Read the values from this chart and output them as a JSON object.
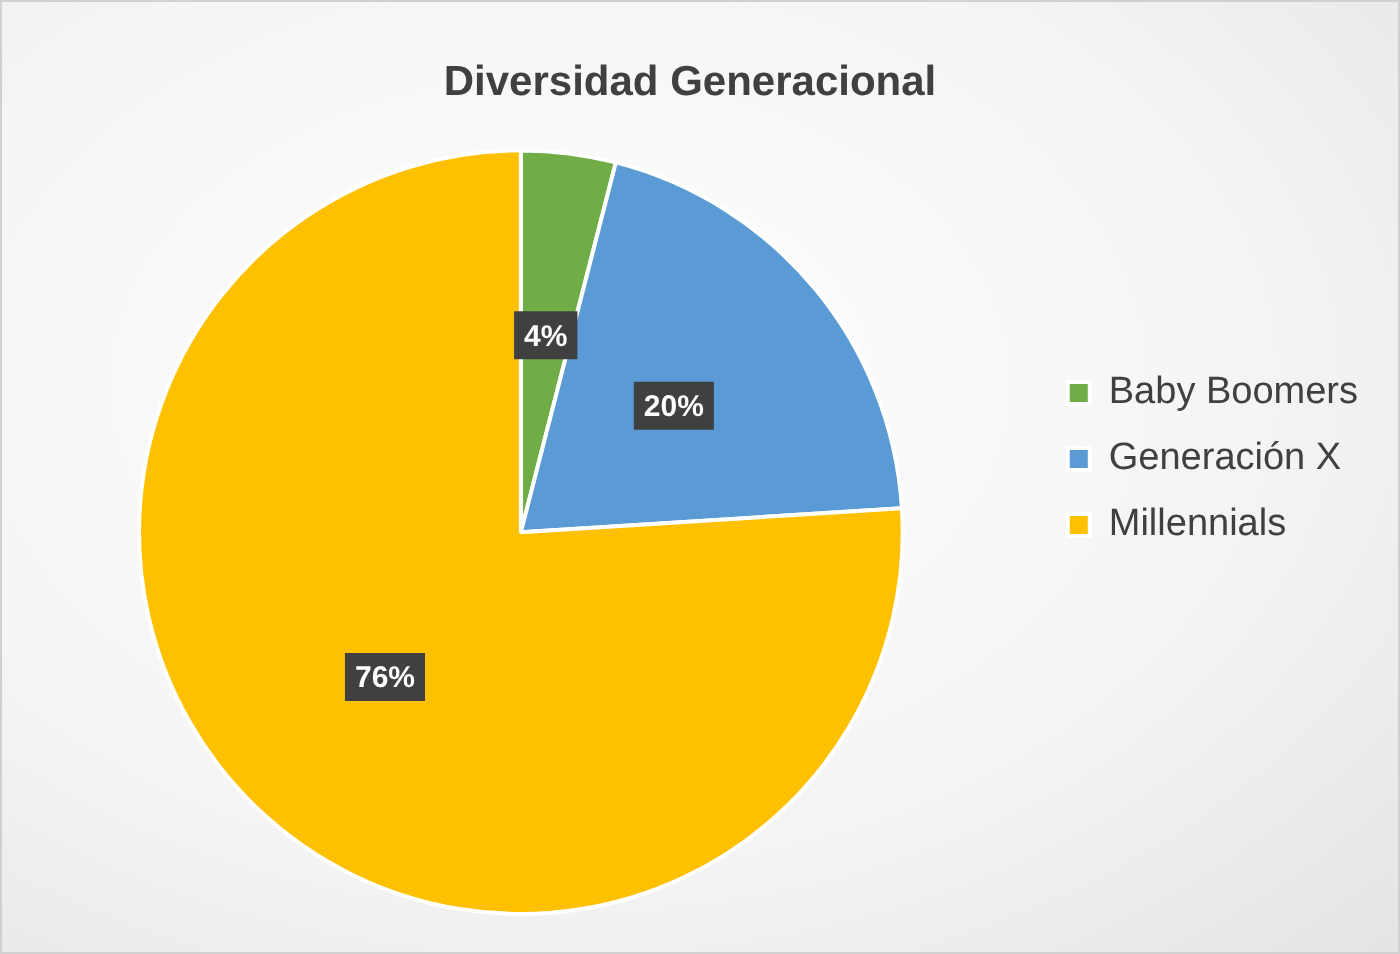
{
  "chart_data": {
    "type": "pie",
    "title": "Diversidad Generacional",
    "categories": [
      "Baby Boomers",
      "Generación X",
      "Millennials"
    ],
    "values": [
      4,
      20,
      76
    ],
    "colors": [
      "#70ad47",
      "#5b9bd5",
      "#ffc000"
    ],
    "value_labels": [
      "4%",
      "20%",
      "76%"
    ],
    "legend": "right"
  }
}
